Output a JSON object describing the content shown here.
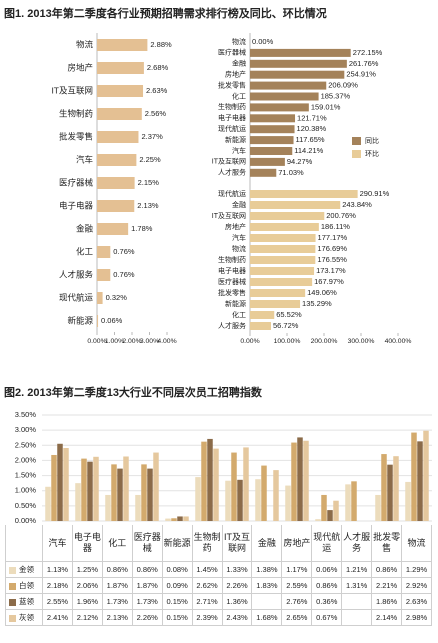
{
  "chart_data": [
    {
      "type": "hbar",
      "title": "图1. 2013年第二季度各行业预期招聘需求排行榜及同比、环比情况",
      "categories": [
        "物流",
        "房地产",
        "IT及互联网",
        "生物制药",
        "批发零售",
        "汽车",
        "医疗器械",
        "电子电器",
        "金融",
        "化工",
        "人才服务",
        "现代航运",
        "新能源"
      ],
      "values": [
        2.88,
        2.68,
        2.63,
        2.56,
        2.37,
        2.25,
        2.15,
        2.13,
        1.78,
        0.76,
        0.76,
        0.32,
        0.06
      ],
      "value_labels": [
        "2.88%",
        "2.68%",
        "2.63%",
        "2.56%",
        "2.37%",
        "2.25%",
        "2.15%",
        "2.13%",
        "1.78%",
        "0.76%",
        "0.76%",
        "0.32%",
        "0.06%"
      ],
      "color": "#e4c093",
      "xlim": [
        0,
        4
      ],
      "xticks": [
        {
          "value": 0,
          "label": "0.00%"
        },
        {
          "value": 1,
          "label": "1.00%"
        },
        {
          "value": 2,
          "label": "2.00%"
        },
        {
          "value": 3,
          "label": "3.00%"
        },
        {
          "value": 4,
          "label": "4.00%"
        }
      ]
    },
    {
      "type": "hbar",
      "categories": [
        "物流",
        "医疗器械",
        "金融",
        "房地产",
        "批发零售",
        "化工",
        "生物制药",
        "电子电器",
        "现代航运",
        "新能源",
        "汽车",
        "IT及互联网",
        "人才服务"
      ],
      "series": [
        {
          "name": "同比",
          "color": "#a4825a",
          "values": [
            0,
            272.15,
            261.76,
            254.91,
            206.09,
            185.37,
            159.01,
            121.71,
            120.38,
            117.65,
            114.21,
            94.27,
            71.03
          ],
          "value_labels": [
            "0.00%",
            "272.15%",
            "261.76%",
            "254.91%",
            "206.09%",
            "185.37%",
            "159.01%",
            "121.71%",
            "120.38%",
            "117.65%",
            "114.21%",
            "94.27%",
            "71.03%"
          ]
        }
      ],
      "xlim": [
        0,
        400
      ]
    },
    {
      "type": "hbar",
      "categories": [
        "现代航运",
        "金融",
        "IT及互联网",
        "房地产",
        "汽车",
        "物流",
        "生物制药",
        "电子电器",
        "医疗器械",
        "批发零售",
        "新能源",
        "化工",
        "人才服务"
      ],
      "series": [
        {
          "name": "环比",
          "color": "#e8cc98",
          "values": [
            290.91,
            243.84,
            200.76,
            186.11,
            177.17,
            176.69,
            176.55,
            173.17,
            167.97,
            149.06,
            135.29,
            65.52,
            56.72
          ],
          "value_labels": [
            "290.91%",
            "243.84%",
            "200.76%",
            "186.11%",
            "177.17%",
            "176.69%",
            "176.55%",
            "173.17%",
            "167.97%",
            "149.06%",
            "135.29%",
            "65.52%",
            "56.72%"
          ]
        }
      ],
      "xlim": [
        0,
        400
      ],
      "xticks": [
        {
          "value": 0,
          "label": "0.00%"
        },
        {
          "value": 100,
          "label": "100.00%"
        },
        {
          "value": 200,
          "label": "200.00%"
        },
        {
          "value": 300,
          "label": "300.00%"
        },
        {
          "value": 400,
          "label": "400.00%"
        }
      ]
    },
    {
      "type": "bar",
      "title": "图2. 2013年第二季度13大行业不同层次员工招聘指数",
      "categories": [
        "汽车",
        "电子电器",
        "化工",
        "医疗器械",
        "新能源",
        "生物制药",
        "IT及互联网",
        "金融",
        "房地产",
        "现代航运",
        "人才服务",
        "批发零售",
        "物流"
      ],
      "series": [
        {
          "name": "金领",
          "color": "#ecdcbc",
          "values": [
            1.13,
            1.25,
            0.86,
            0.86,
            0.08,
            1.45,
            1.33,
            1.38,
            1.17,
            0.06,
            1.21,
            0.86,
            1.29
          ],
          "value_labels": [
            "1.13%",
            "1.25%",
            "0.86%",
            "0.86%",
            "0.08%",
            "1.45%",
            "1.33%",
            "1.38%",
            "1.17%",
            "0.06%",
            "1.21%",
            "0.86%",
            "1.29%"
          ]
        },
        {
          "name": "白领",
          "color": "#d3aa6d",
          "values": [
            2.18,
            2.06,
            1.87,
            1.87,
            0.09,
            2.62,
            2.26,
            1.83,
            2.59,
            0.86,
            1.31,
            2.21,
            2.92
          ],
          "value_labels": [
            "2.18%",
            "2.06%",
            "1.87%",
            "1.87%",
            "0.09%",
            "2.62%",
            "2.26%",
            "1.83%",
            "2.59%",
            "0.86%",
            "1.31%",
            "2.21%",
            "2.92%"
          ]
        },
        {
          "name": "蓝领",
          "color": "#8b6b49",
          "values": [
            2.55,
            1.96,
            1.73,
            1.73,
            0.15,
            2.71,
            1.36,
            null,
            2.76,
            0.36,
            null,
            1.86,
            2.63
          ],
          "value_labels": [
            "2.55%",
            "1.96%",
            "1.73%",
            "1.73%",
            "0.15%",
            "2.71%",
            "1.36%",
            null,
            "2.76%",
            "0.36%",
            null,
            "1.86%",
            "2.63%"
          ]
        },
        {
          "name": "灰领",
          "color": "#e5c89e",
          "values": [
            2.41,
            2.12,
            2.13,
            2.26,
            0.15,
            2.39,
            2.43,
            1.68,
            2.65,
            0.67,
            null,
            2.14,
            2.98
          ],
          "value_labels": [
            "2.41%",
            "2.12%",
            "2.13%",
            "2.26%",
            "0.15%",
            "2.39%",
            "2.43%",
            "1.68%",
            "2.65%",
            "0.67%",
            null,
            "2.14%",
            "2.98%"
          ]
        }
      ],
      "ylim": [
        0,
        3.5
      ],
      "yticks": [
        {
          "value": 0,
          "label": "0.00%"
        },
        {
          "value": 0.5,
          "label": "0.50%"
        },
        {
          "value": 1,
          "label": "1.00%"
        },
        {
          "value": 1.5,
          "label": "1.50%"
        },
        {
          "value": 2,
          "label": "2.00%"
        },
        {
          "value": 2.5,
          "label": "2.50%"
        },
        {
          "value": 3,
          "label": "3.00%"
        },
        {
          "value": 3.5,
          "label": "3.50%"
        }
      ],
      "grid": true
    }
  ]
}
